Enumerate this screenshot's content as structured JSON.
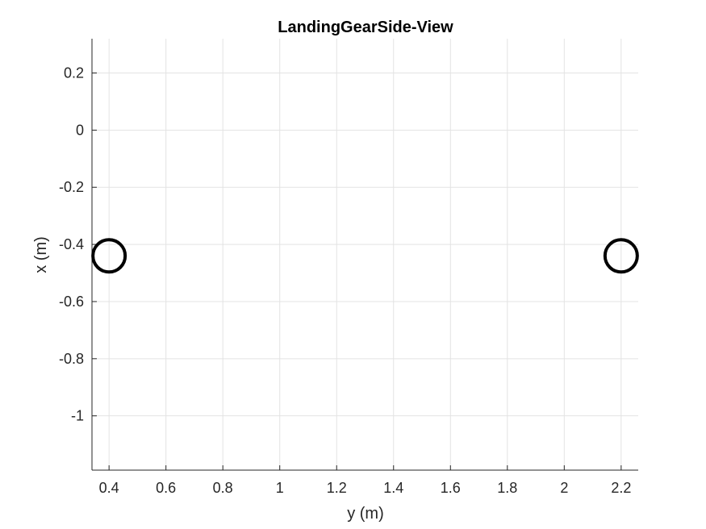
{
  "chart_data": {
    "type": "scatter",
    "title": "LandingGearSide-View",
    "xlabel": "y (m)",
    "ylabel": "x (m)",
    "xlim": [
      0.34,
      2.26
    ],
    "ylim": [
      -1.19,
      0.32
    ],
    "xticks": [
      0.4,
      0.6,
      0.8,
      1,
      1.2,
      1.4,
      1.6,
      1.8,
      2,
      2.2
    ],
    "xtick_labels": [
      "0.4",
      "0.6",
      "0.8",
      "1",
      "1.2",
      "1.4",
      "1.6",
      "1.8",
      "2",
      "2.2"
    ],
    "yticks": [
      0.2,
      0,
      -0.2,
      -0.4,
      -0.6,
      -0.8,
      -1
    ],
    "ytick_labels": [
      "0.2",
      "0",
      "-0.2",
      "-0.4",
      "-0.6",
      "-0.8",
      "-1"
    ],
    "grid": true,
    "marker": "circle-open",
    "marker_color": "#000000",
    "points": [
      {
        "x": 0.4,
        "y": -0.44
      },
      {
        "x": 2.2,
        "y": -0.44
      }
    ]
  }
}
